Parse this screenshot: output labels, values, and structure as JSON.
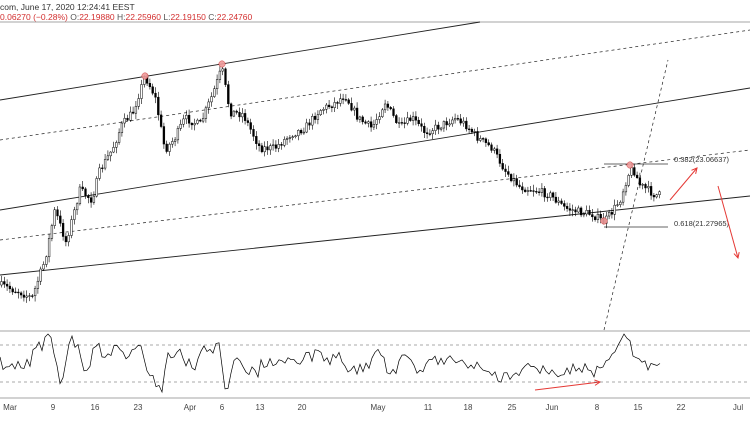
{
  "header": {
    "title": "com, June 17, 2020 12:24:41 EEST",
    "change_value": "0.06270",
    "change_pct": "(−0.28%)",
    "o_label": "O:",
    "o_value": "22.19880",
    "h_label": "H:",
    "h_value": "22.25960",
    "l_label": "L:",
    "l_value": "22.19150",
    "c_label": "C:",
    "c_value": "22.24760"
  },
  "chart_data": {
    "type": "candlestick",
    "x_ticks": [
      "Mar",
      "9",
      "16",
      "23",
      "Apr",
      "6",
      "13",
      "20",
      "May",
      "11",
      "18",
      "25",
      "Jun",
      "8",
      "15",
      "22",
      "Jul"
    ],
    "annotations": [
      {
        "label": "0.382(23.06637)"
      },
      {
        "label": "0.618(21.27965)"
      }
    ],
    "indicator": {
      "type": "rsi"
    },
    "colors": {
      "price": "#000000",
      "highlight": "#ef9a9a",
      "arrow": "#e53935",
      "channel": "#222222"
    }
  }
}
